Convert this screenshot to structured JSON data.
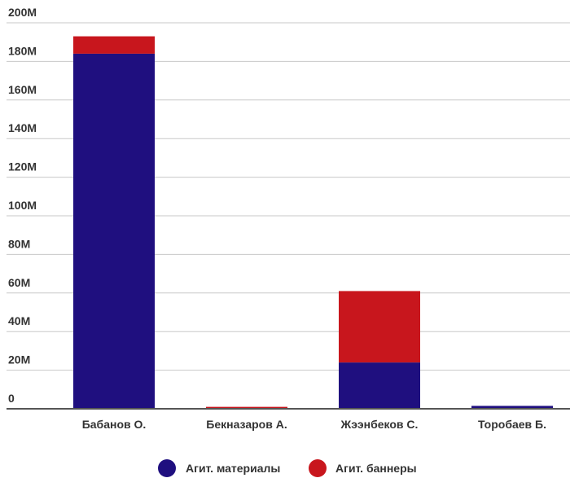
{
  "chart_data": {
    "type": "bar",
    "stacked": true,
    "categories": [
      "Бабанов О.",
      "Бекназаров А.",
      "Жээнбеков С.",
      "Торобаев Б."
    ],
    "series": [
      {
        "name": "Агит. материалы",
        "color": "#1f0f7f",
        "values": [
          184,
          0,
          24,
          1.5
        ]
      },
      {
        "name": "Агит. баннеры",
        "color": "#c8161d",
        "values": [
          9,
          1,
          37,
          0
        ]
      }
    ],
    "ylim": [
      0,
      200
    ],
    "yticks": [
      0,
      20,
      40,
      60,
      80,
      100,
      120,
      140,
      160,
      180,
      200
    ],
    "ytick_labels": [
      "0",
      "20M",
      "40M",
      "60M",
      "80M",
      "100M",
      "120M",
      "140M",
      "160M",
      "180M",
      "200M"
    ],
    "title": "",
    "xlabel": "",
    "ylabel": "",
    "grid": true,
    "legend_position": "bottom-center"
  }
}
